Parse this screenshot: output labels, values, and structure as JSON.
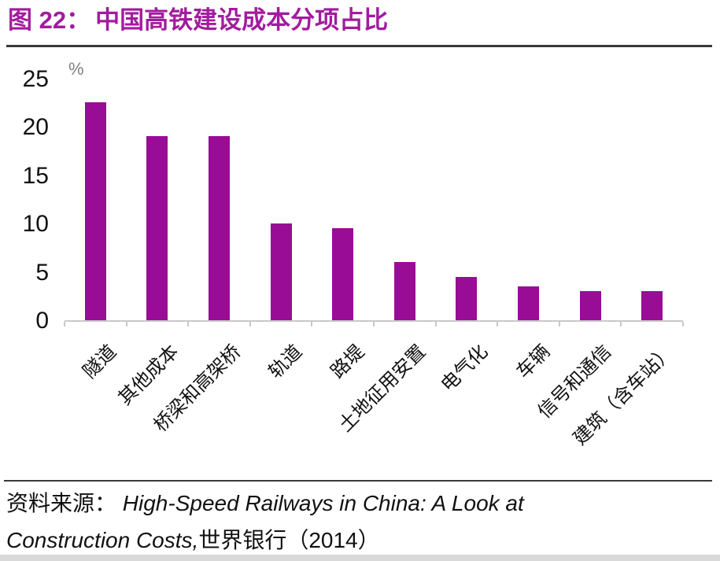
{
  "figure": {
    "label": "图 22：",
    "title": "中国高铁建设成本分项占比"
  },
  "chart_data": {
    "type": "bar",
    "title": "中国高铁建设成本分项占比",
    "ylabel": "%",
    "xlabel": "",
    "categories": [
      "隧道",
      "其他成本",
      "桥梁和高架桥",
      "轨道",
      "路堤",
      "土地征用安置",
      "电气化",
      "车辆",
      "信号和通信",
      "建筑（含车站）"
    ],
    "values": [
      22.5,
      19,
      19,
      10,
      9.5,
      6,
      4.5,
      3.5,
      3,
      3
    ],
    "ylim": [
      0,
      25
    ],
    "yticks": [
      0,
      5,
      10,
      15,
      20,
      25
    ],
    "grid": false,
    "legend": "none",
    "x_label_rotation_deg": 45,
    "bar_color": "#990c96"
  },
  "source": {
    "label": "资料来源：",
    "reference_italic": "High-Speed Railways in China: A Look at Construction Costs,",
    "reference_tail": "世界银行（2014）"
  },
  "colors": {
    "title": "#a21c9e",
    "bar": "#990c96",
    "axis_line": "#c9c9c9",
    "unit_label": "#808080",
    "text": "#111111",
    "divider": "#3a3a3a",
    "bottom_strip": "#d9d9d9"
  }
}
